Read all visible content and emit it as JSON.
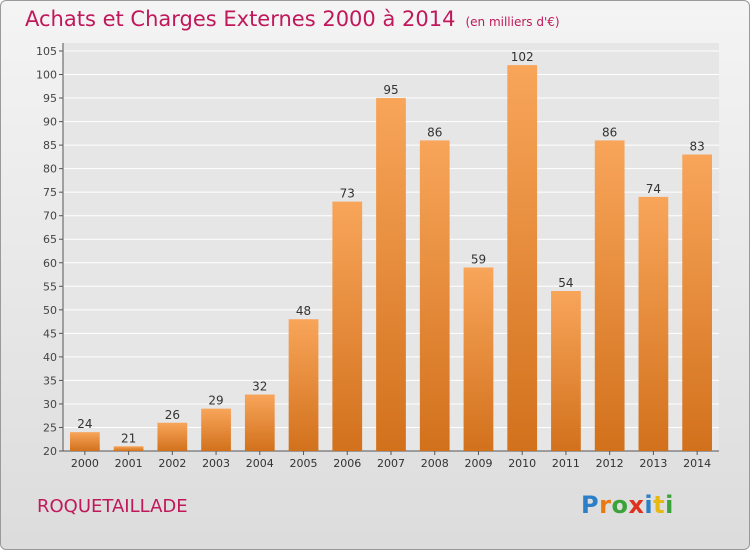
{
  "title": "Achats et Charges Externes 2000 à 2014",
  "unit": "(en milliers d'€)",
  "town": "ROQUETAILLADE",
  "logo": {
    "text": "Proxiti",
    "letters": [
      {
        "ch": "P",
        "color": "#2a7fc8"
      },
      {
        "ch": "r",
        "color": "#e87a12"
      },
      {
        "ch": "o",
        "color": "#3aa33a"
      },
      {
        "ch": "x",
        "color": "#e0301e"
      },
      {
        "ch": "i",
        "color": "#2a7fc8"
      },
      {
        "ch": "t",
        "color": "#e8b812"
      },
      {
        "ch": "i",
        "color": "#3aa33a"
      }
    ]
  },
  "colors": {
    "accent": "#c0185a",
    "bar_light": "#f8a55a",
    "bar_dark": "#d2711c"
  },
  "chart_data": {
    "type": "bar",
    "categories": [
      "2000",
      "2001",
      "2002",
      "2003",
      "2004",
      "2005",
      "2006",
      "2007",
      "2008",
      "2009",
      "2010",
      "2011",
      "2012",
      "2013",
      "2014"
    ],
    "values": [
      24,
      21,
      26,
      29,
      32,
      48,
      73,
      95,
      86,
      59,
      102,
      54,
      86,
      74,
      83
    ],
    "ylim": [
      20,
      105
    ],
    "yticks": [
      20,
      25,
      30,
      35,
      40,
      45,
      50,
      55,
      60,
      65,
      70,
      75,
      80,
      85,
      90,
      95,
      100,
      105
    ],
    "grid": true
  }
}
